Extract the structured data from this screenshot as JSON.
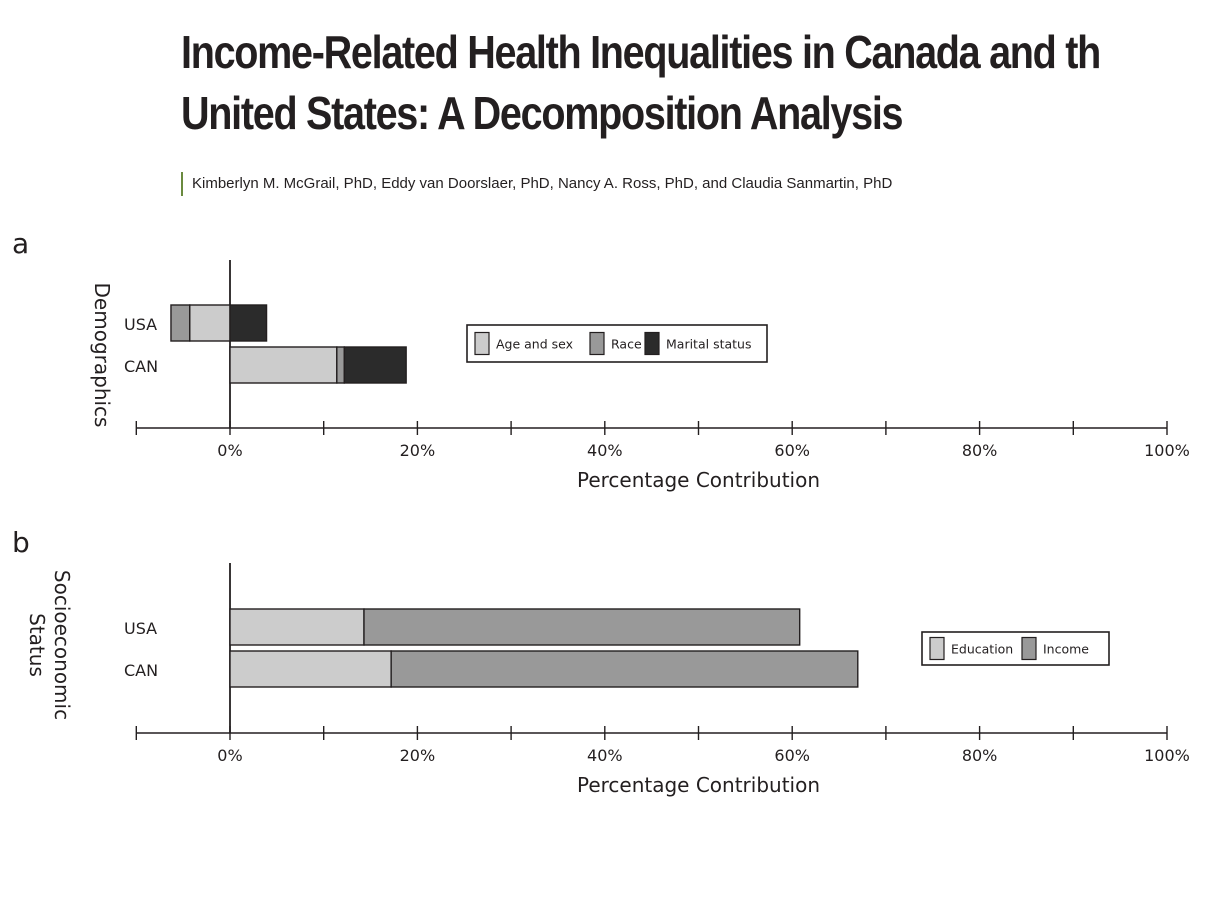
{
  "paper": {
    "title_line1": "Income-Related Health Inequalities in Canada and th",
    "title_line2": "United States: A Decomposition Analysis",
    "authors": "Kimberlyn M. McGrail, PhD, Eddy van Doorslaer, PhD, Nancy A. Ross, PhD, and Claudia Sanmartin, PhD"
  },
  "colors": {
    "light": "#cccccc",
    "medium": "#999999",
    "dark": "#2b2b2b",
    "stroke": "#231f20"
  },
  "chart_data": [
    {
      "panel": "a",
      "type": "bar",
      "stacked": true,
      "orientation": "horizontal",
      "ylabel": "Demographics",
      "xlabel": "Percentage Contribution",
      "categories": [
        "USA",
        "CAN"
      ],
      "xlim": [
        -10,
        100
      ],
      "xticks": [
        0,
        20,
        40,
        60,
        80,
        100
      ],
      "xtick_labels": [
        "0%",
        "20%",
        "40%",
        "60%",
        "80%",
        "100%"
      ],
      "legend_position": "center",
      "series": [
        {
          "name": "Age and sex",
          "color": "#cccccc",
          "values": [
            -4.3,
            11.4
          ]
        },
        {
          "name": "Race",
          "color": "#999999",
          "values": [
            -2.0,
            0.8
          ]
        },
        {
          "name": "Marital status",
          "color": "#2b2b2b",
          "values": [
            3.9,
            6.6
          ]
        }
      ]
    },
    {
      "panel": "b",
      "type": "bar",
      "stacked": true,
      "orientation": "horizontal",
      "ylabel": "Socioeconomic Status",
      "ylabel_lines": [
        "Socioeconomic",
        "Status"
      ],
      "xlabel": "Percentage Contribution",
      "categories": [
        "USA",
        "CAN"
      ],
      "xlim": [
        -10,
        100
      ],
      "xticks": [
        0,
        20,
        40,
        60,
        80,
        100
      ],
      "xtick_labels": [
        "0%",
        "20%",
        "40%",
        "60%",
        "80%",
        "100%"
      ],
      "legend_position": "right",
      "series": [
        {
          "name": "Education",
          "color": "#cccccc",
          "values": [
            14.3,
            17.2
          ]
        },
        {
          "name": "Income",
          "color": "#999999",
          "values": [
            46.5,
            49.8
          ]
        }
      ]
    }
  ]
}
